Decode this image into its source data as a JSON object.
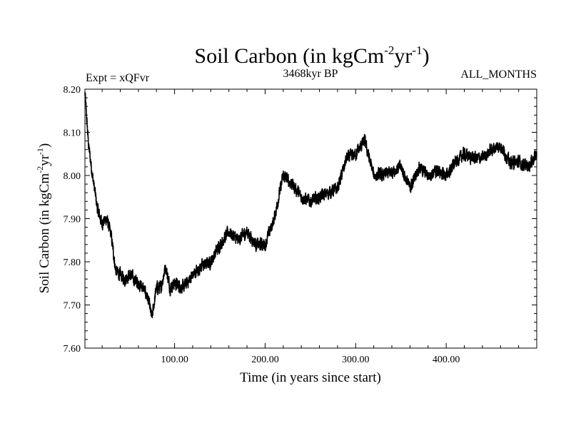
{
  "chart_data": {
    "type": "line",
    "title": "Soil Carbon (in kgCm",
    "title_sup1": "-2",
    "title_mid": "yr",
    "title_sup2": "-1",
    "title_end": ")",
    "subtitle_left": "Expt = xQFvr",
    "subtitle_center": "3468kyr BP",
    "subtitle_right": "ALL_MONTHS",
    "xlabel": "Time (in years since start)",
    "ylabel": "Soil Carbon (in kgCm",
    "ylabel_sup1": "-2",
    "ylabel_mid": "yr",
    "ylabel_sup2": "-1",
    "ylabel_end": ")",
    "xlim": [
      1,
      500
    ],
    "ylim": [
      7.6,
      8.2
    ],
    "x_ticks": [
      100,
      200,
      300,
      400
    ],
    "x_tick_labels": [
      "100.00",
      "200.00",
      "300.00",
      "400.00"
    ],
    "y_ticks": [
      7.6,
      7.7,
      7.8,
      7.9,
      8.0,
      8.1,
      8.2
    ],
    "y_tick_labels": [
      "7.60",
      "7.70",
      "7.80",
      "7.90",
      "8.00",
      "8.10",
      "8.20"
    ],
    "line_color": "#000000",
    "series": [
      {
        "name": "Soil Carbon",
        "x": [
          1,
          5,
          10,
          15,
          20,
          25,
          30,
          35,
          40,
          45,
          50,
          55,
          60,
          65,
          70,
          75,
          80,
          85,
          90,
          95,
          100,
          110,
          120,
          130,
          140,
          150,
          160,
          170,
          180,
          190,
          200,
          210,
          220,
          230,
          240,
          250,
          260,
          270,
          280,
          290,
          300,
          310,
          320,
          330,
          340,
          350,
          360,
          370,
          380,
          390,
          400,
          410,
          420,
          430,
          440,
          450,
          460,
          470,
          480,
          490,
          500
        ],
        "values": [
          8.19,
          8.07,
          7.99,
          7.92,
          7.89,
          7.9,
          7.86,
          7.78,
          7.77,
          7.76,
          7.77,
          7.76,
          7.75,
          7.74,
          7.72,
          7.67,
          7.74,
          7.74,
          7.79,
          7.74,
          7.75,
          7.74,
          7.77,
          7.79,
          7.8,
          7.84,
          7.87,
          7.85,
          7.87,
          7.84,
          7.84,
          7.9,
          8.0,
          7.98,
          7.95,
          7.94,
          7.95,
          7.96,
          7.97,
          8.04,
          8.05,
          8.08,
          8.0,
          8.0,
          8.01,
          8.02,
          7.97,
          8.02,
          8.0,
          8.01,
          8.0,
          8.03,
          8.05,
          8.04,
          8.04,
          8.06,
          8.07,
          8.03,
          8.03,
          8.02,
          8.05
        ]
      }
    ]
  }
}
